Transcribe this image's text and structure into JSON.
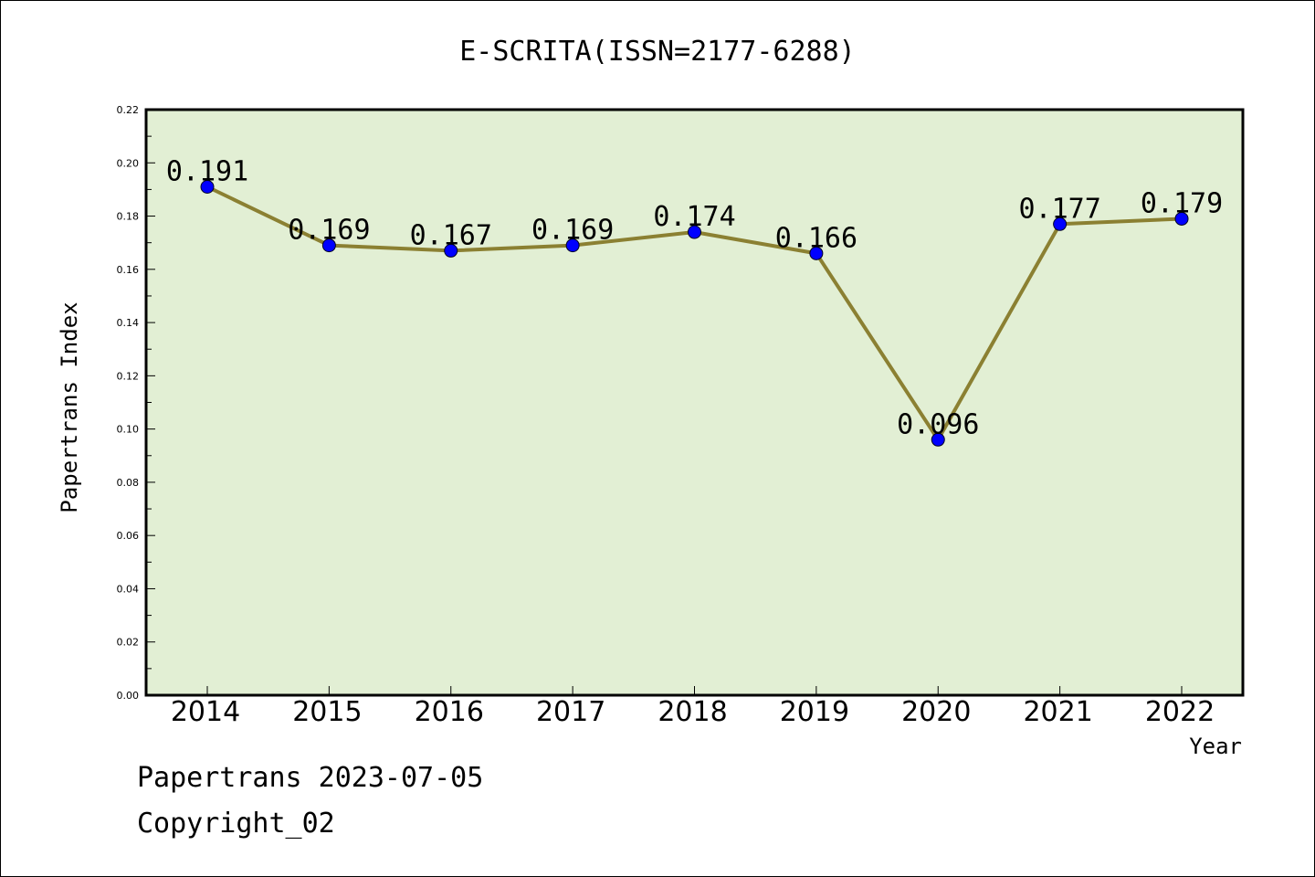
{
  "chart_data": {
    "type": "line",
    "title": "E-SCRITA(ISSN=2177-6288)",
    "xlabel": "Year",
    "ylabel": "Papertrans Index",
    "categories": [
      "2014",
      "2015",
      "2016",
      "2017",
      "2018",
      "2019",
      "2020",
      "2021",
      "2022"
    ],
    "values": [
      0.191,
      0.169,
      0.167,
      0.169,
      0.174,
      0.166,
      0.096,
      0.177,
      0.179
    ],
    "data_labels": [
      "0.191",
      "0.169",
      "0.167",
      "0.169",
      "0.174",
      "0.166",
      "0.096",
      "0.177",
      "0.179"
    ],
    "ylim": [
      0.0,
      0.22
    ],
    "yticks": [
      "0.00",
      "0.02",
      "0.04",
      "0.06",
      "0.08",
      "0.10",
      "0.12",
      "0.14",
      "0.16",
      "0.18",
      "0.20",
      "0.22"
    ],
    "grid": false,
    "legend": "none",
    "colors": {
      "line": "#8b8032",
      "marker": "#0000ff",
      "plot_background": "#e2efd4",
      "axes": "#000000"
    }
  },
  "footer": {
    "date_text": "Papertrans 2023-07-05",
    "copyright_text": "Copyright_02"
  }
}
